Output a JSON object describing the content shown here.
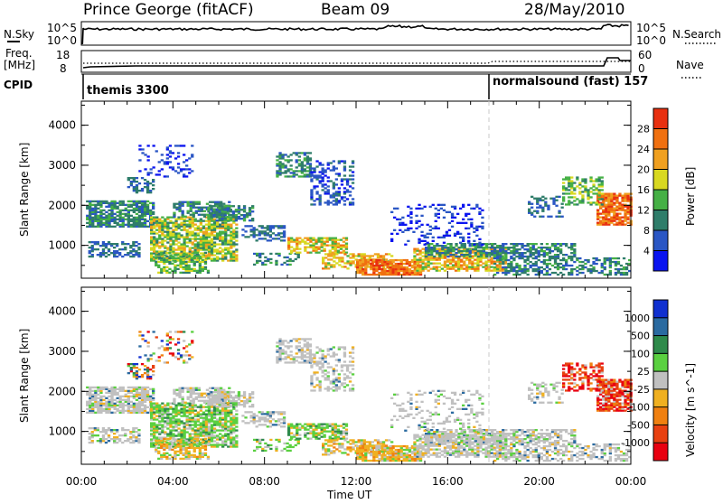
{
  "header": {
    "title": "Prince George (fitACF)",
    "beam": "Beam 09",
    "date": "28/May/2010"
  },
  "params": {
    "nsky_label": "N.Sky",
    "nsearch_label": "N.Search",
    "freq_label_line1": "Freq.",
    "freq_label_line2": "[MHz]",
    "nave_label": "Nave",
    "cpid_label": "CPID",
    "nsky_ticks": [
      "10^5",
      "10^0"
    ],
    "nsearch_ticks": [
      "10^5",
      "10^0"
    ],
    "freq_ticks": [
      "18",
      "8"
    ],
    "nave_ticks": [
      "60",
      "0"
    ],
    "modes": [
      {
        "name": "themis 3300",
        "start_hour": 0
      },
      {
        "name": "normalsound (fast)  157",
        "start_hour": 18
      }
    ]
  },
  "chart_data": [
    {
      "type": "heatmap",
      "name": "power",
      "ylabel": "Slant Range [km]",
      "xlabel": "",
      "yticks": [
        "1000",
        "2000",
        "3000",
        "4000"
      ],
      "ylim": [
        180,
        4600
      ],
      "xlim": [
        0,
        24
      ],
      "colorbar": {
        "label": "Power [dB]",
        "ticks": [
          "4",
          "8",
          "12",
          "16",
          "20",
          "24",
          "28"
        ],
        "colors": [
          "#0a14f0",
          "#2a56c4",
          "#2f7d6a",
          "#45b045",
          "#d8d820",
          "#f0a020",
          "#f07010",
          "#e83010"
        ]
      },
      "description_regions": [
        {
          "t0": 0.2,
          "t1": 3.2,
          "r0": 1400,
          "r1": 2100,
          "level": 3
        },
        {
          "t0": 3.0,
          "t1": 6.5,
          "r0": 500,
          "r1": 1700,
          "level": 5
        },
        {
          "t0": 9.0,
          "t1": 11.5,
          "r0": 800,
          "r1": 1200,
          "level": 6
        },
        {
          "t0": 12.0,
          "t1": 14.5,
          "r0": 300,
          "r1": 600,
          "level": 7
        },
        {
          "t0": 15.0,
          "t1": 18.0,
          "r0": 400,
          "r1": 800,
          "level": 6
        },
        {
          "t0": 22.5,
          "t1": 24.0,
          "r0": 1500,
          "r1": 2300,
          "level": 7
        }
      ]
    },
    {
      "type": "heatmap",
      "name": "velocity",
      "ylabel": "Slant Range [km]",
      "xlabel": "Time UT",
      "yticks": [
        "1000",
        "2000",
        "3000",
        "4000"
      ],
      "ylim": [
        180,
        4600
      ],
      "xlim": [
        0,
        24
      ],
      "xticks": [
        "00:00",
        "04:00",
        "08:00",
        "12:00",
        "16:00",
        "20:00",
        "00:00"
      ],
      "colorbar": {
        "label": "Velocity [m s^-1]",
        "ticks": [
          "1000",
          "500",
          "100",
          "25",
          "-25",
          "-100",
          "-500",
          "-1000"
        ],
        "colors": [
          "#1030d0",
          "#2a6aa0",
          "#2e8a4a",
          "#5ad040",
          "#c0c0c0",
          "#f0b020",
          "#f08010",
          "#e84010",
          "#e80010"
        ]
      }
    }
  ]
}
